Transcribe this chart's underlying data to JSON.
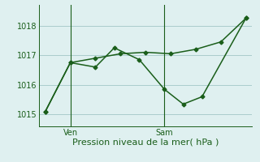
{
  "xlabel": "Pression niveau de la mer( hPa )",
  "background_color": "#dff0f0",
  "grid_color": "#aacccc",
  "line_color": "#1a5e1a",
  "ylim": [
    1014.6,
    1018.7
  ],
  "xlim": [
    0,
    17
  ],
  "yticks": [
    1015,
    1016,
    1017,
    1018
  ],
  "xtick_positions": [
    2.5,
    10
  ],
  "xtick_labels": [
    "Ven",
    "Sam"
  ],
  "vlines": [
    2.5,
    10
  ],
  "series1_x": [
    0.5,
    2.5,
    4.5,
    6.0,
    8.0,
    10.0,
    11.5,
    13.0,
    16.5
  ],
  "series1_y": [
    1015.1,
    1016.75,
    1016.6,
    1017.25,
    1016.85,
    1015.85,
    1015.35,
    1015.6,
    1018.25
  ],
  "series2_x": [
    0.5,
    2.5,
    4.5,
    6.5,
    8.5,
    10.5,
    12.5,
    14.5,
    16.5
  ],
  "series2_y": [
    1015.1,
    1016.75,
    1016.9,
    1017.05,
    1017.1,
    1017.05,
    1017.2,
    1017.45,
    1018.25
  ],
  "marker": "D",
  "markersize": 2.5,
  "linewidth": 1.1,
  "xlabel_fontsize": 8,
  "tick_fontsize": 7
}
